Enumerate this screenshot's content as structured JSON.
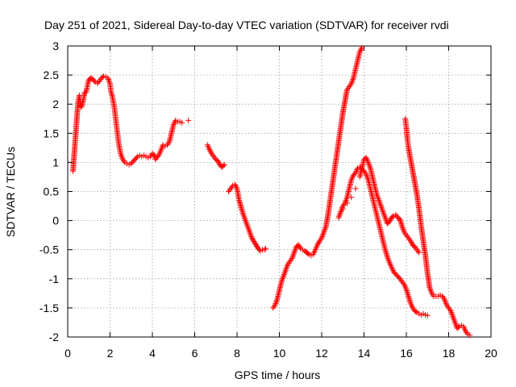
{
  "chart_data": {
    "type": "scatter",
    "title": "Day 251 of 2021, Sidereal Day-to-day VTEC variation (SDTVAR) for receiver rvdi",
    "xlabel": "GPS time / hours",
    "ylabel": "SDTVAR / TECUs",
    "xlim": [
      0,
      20
    ],
    "ylim": [
      -2,
      3
    ],
    "x_ticks": [
      0,
      2,
      4,
      6,
      8,
      10,
      12,
      14,
      16,
      18,
      20
    ],
    "x_tick_labels": [
      "0",
      "2",
      "4",
      "6",
      "8",
      "10",
      "12",
      "14",
      "16",
      "18",
      "20"
    ],
    "y_ticks": [
      -2,
      -1.5,
      -1,
      -0.5,
      0,
      0.5,
      1,
      1.5,
      2,
      2.5,
      3
    ],
    "y_tick_labels": [
      "-2",
      "-1.5",
      "-1",
      "-0.5",
      "0",
      "0.5",
      "1",
      "1.5",
      "2",
      "2.5",
      "3"
    ],
    "grid": true,
    "marker": "plus",
    "color": "#ff0000",
    "series": [
      {
        "points": [
          [
            0.25,
            0.85
          ],
          [
            0.3,
            1.1
          ],
          [
            0.35,
            1.35
          ],
          [
            0.4,
            1.6
          ],
          [
            0.45,
            1.85
          ],
          [
            0.5,
            2.05
          ],
          [
            0.55,
            2.15
          ],
          [
            0.6,
            2.0
          ],
          [
            0.65,
            1.95
          ],
          [
            0.7,
            2.0
          ],
          [
            0.75,
            2.1
          ],
          [
            0.8,
            2.2
          ],
          [
            0.85,
            2.2
          ],
          [
            0.9,
            2.25
          ],
          [
            0.95,
            2.35
          ],
          [
            1.0,
            2.42
          ],
          [
            1.1,
            2.45
          ],
          [
            1.2,
            2.42
          ],
          [
            1.3,
            2.38
          ],
          [
            1.4,
            2.36
          ],
          [
            1.5,
            2.4
          ],
          [
            1.6,
            2.45
          ],
          [
            1.7,
            2.48
          ],
          [
            1.8,
            2.47
          ],
          [
            1.9,
            2.45
          ],
          [
            1.95,
            2.4
          ],
          [
            2.0,
            2.35
          ],
          [
            2.05,
            2.2
          ],
          [
            2.1,
            2.15
          ],
          [
            2.15,
            2.05
          ],
          [
            2.2,
            1.95
          ],
          [
            2.25,
            1.8
          ],
          [
            2.3,
            1.65
          ],
          [
            2.35,
            1.5
          ],
          [
            2.4,
            1.35
          ],
          [
            2.45,
            1.25
          ],
          [
            2.5,
            1.15
          ],
          [
            2.6,
            1.05
          ],
          [
            2.7,
            1.0
          ],
          [
            2.8,
            0.98
          ],
          [
            2.9,
            0.96
          ],
          [
            3.0,
            0.98
          ],
          [
            3.1,
            1.02
          ],
          [
            3.2,
            1.06
          ],
          [
            3.3,
            1.1
          ],
          [
            3.4,
            1.12
          ],
          [
            3.5,
            1.1
          ],
          [
            3.6,
            1.12
          ],
          [
            3.7,
            1.1
          ],
          [
            3.8,
            1.08
          ],
          [
            3.9,
            1.1
          ],
          [
            4.0,
            1.15
          ],
          [
            4.1,
            1.12
          ],
          [
            4.15,
            1.05
          ],
          [
            4.2,
            1.08
          ],
          [
            4.3,
            1.12
          ],
          [
            4.4,
            1.2
          ],
          [
            4.5,
            1.3
          ],
          [
            4.6,
            1.28
          ],
          [
            4.7,
            1.3
          ],
          [
            4.8,
            1.35
          ],
          [
            4.9,
            1.5
          ],
          [
            5.0,
            1.65
          ],
          [
            5.1,
            1.72
          ],
          [
            5.2,
            1.7
          ],
          [
            5.3,
            1.7
          ],
          [
            5.4,
            1.68
          ],
          [
            5.7,
            1.72
          ],
          [
            6.6,
            1.3
          ],
          [
            6.7,
            1.22
          ],
          [
            6.8,
            1.15
          ],
          [
            6.9,
            1.1
          ],
          [
            7.0,
            1.05
          ],
          [
            7.1,
            1.02
          ],
          [
            7.2,
            0.95
          ],
          [
            7.3,
            0.92
          ],
          [
            7.4,
            0.96
          ],
          [
            7.6,
            0.5
          ],
          [
            7.7,
            0.55
          ],
          [
            7.8,
            0.6
          ],
          [
            7.9,
            0.62
          ],
          [
            8.0,
            0.55
          ],
          [
            8.05,
            0.45
          ],
          [
            8.1,
            0.35
          ],
          [
            8.2,
            0.22
          ],
          [
            8.3,
            0.1
          ],
          [
            8.4,
            0.0
          ],
          [
            8.5,
            -0.1
          ],
          [
            8.6,
            -0.2
          ],
          [
            8.7,
            -0.3
          ],
          [
            8.8,
            -0.36
          ],
          [
            8.9,
            -0.42
          ],
          [
            9.0,
            -0.48
          ],
          [
            9.1,
            -0.52
          ],
          [
            9.2,
            -0.5
          ],
          [
            9.3,
            -0.5
          ],
          [
            9.35,
            -0.48
          ],
          [
            9.7,
            -1.5
          ],
          [
            9.8,
            -1.45
          ],
          [
            9.9,
            -1.35
          ],
          [
            10.0,
            -1.2
          ],
          [
            10.1,
            -1.05
          ],
          [
            10.2,
            -0.95
          ],
          [
            10.3,
            -0.85
          ],
          [
            10.4,
            -0.75
          ],
          [
            10.5,
            -0.7
          ],
          [
            10.6,
            -0.65
          ],
          [
            10.7,
            -0.55
          ],
          [
            10.8,
            -0.45
          ],
          [
            10.9,
            -0.42
          ],
          [
            11.0,
            -0.48
          ],
          [
            11.1,
            -0.5
          ],
          [
            11.2,
            -0.52
          ],
          [
            11.3,
            -0.55
          ],
          [
            11.4,
            -0.58
          ],
          [
            11.5,
            -0.6
          ],
          [
            11.6,
            -0.58
          ],
          [
            11.7,
            -0.5
          ],
          [
            11.8,
            -0.42
          ],
          [
            11.9,
            -0.35
          ],
          [
            12.0,
            -0.3
          ],
          [
            12.1,
            -0.2
          ],
          [
            12.2,
            -0.1
          ],
          [
            12.3,
            0.1
          ],
          [
            12.4,
            0.35
          ],
          [
            12.5,
            0.6
          ],
          [
            12.6,
            0.85
          ],
          [
            12.7,
            1.1
          ],
          [
            12.8,
            1.35
          ],
          [
            12.9,
            1.6
          ],
          [
            13.0,
            1.85
          ],
          [
            13.1,
            2.05
          ],
          [
            13.2,
            2.25
          ],
          [
            13.3,
            2.3
          ],
          [
            13.4,
            2.35
          ],
          [
            13.5,
            2.45
          ],
          [
            13.6,
            2.6
          ],
          [
            13.7,
            2.75
          ],
          [
            13.8,
            2.9
          ],
          [
            13.9,
            2.97
          ],
          [
            12.8,
            0.05
          ],
          [
            12.9,
            0.15
          ],
          [
            13.0,
            0.25
          ],
          [
            13.1,
            0.3
          ],
          [
            13.2,
            0.4
          ],
          [
            13.3,
            0.55
          ],
          [
            13.4,
            0.7
          ],
          [
            13.5,
            0.78
          ],
          [
            13.6,
            0.82
          ],
          [
            13.7,
            0.9
          ],
          [
            13.8,
            0.92
          ],
          [
            13.9,
            0.88
          ],
          [
            14.0,
            0.85
          ],
          [
            14.1,
            0.8
          ],
          [
            14.2,
            0.7
          ],
          [
            14.3,
            0.55
          ],
          [
            14.4,
            0.4
          ],
          [
            14.5,
            0.25
          ],
          [
            14.6,
            0.1
          ],
          [
            14.7,
            -0.05
          ],
          [
            14.8,
            -0.2
          ],
          [
            14.9,
            -0.35
          ],
          [
            15.0,
            -0.5
          ],
          [
            15.1,
            -0.62
          ],
          [
            15.2,
            -0.72
          ],
          [
            15.3,
            -0.8
          ],
          [
            15.4,
            -0.88
          ],
          [
            15.5,
            -0.92
          ],
          [
            15.6,
            -0.96
          ],
          [
            15.7,
            -1.0
          ],
          [
            15.8,
            -1.05
          ],
          [
            15.9,
            -1.1
          ],
          [
            16.0,
            -1.18
          ],
          [
            16.1,
            -1.3
          ],
          [
            16.2,
            -1.42
          ],
          [
            16.3,
            -1.5
          ],
          [
            16.4,
            -1.55
          ],
          [
            16.5,
            -1.58
          ],
          [
            16.6,
            -1.6
          ],
          [
            16.7,
            -1.62
          ],
          [
            16.8,
            -1.6
          ],
          [
            16.9,
            -1.62
          ],
          [
            17.0,
            -1.63
          ],
          [
            13.0,
            0.2
          ],
          [
            13.2,
            0.3
          ],
          [
            13.4,
            0.4
          ],
          [
            13.6,
            0.55
          ],
          [
            13.8,
            0.75
          ],
          [
            13.9,
            0.9
          ],
          [
            14.0,
            1.05
          ],
          [
            14.1,
            1.08
          ],
          [
            14.2,
            1.0
          ],
          [
            14.3,
            0.9
          ],
          [
            14.4,
            0.75
          ],
          [
            14.5,
            0.6
          ],
          [
            14.6,
            0.45
          ],
          [
            14.7,
            0.35
          ],
          [
            14.8,
            0.25
          ],
          [
            14.9,
            0.15
          ],
          [
            15.0,
            0.05
          ],
          [
            15.1,
            -0.05
          ],
          [
            15.2,
            -0.02
          ],
          [
            15.3,
            0.05
          ],
          [
            15.4,
            0.08
          ],
          [
            15.5,
            0.1
          ],
          [
            15.6,
            0.05
          ],
          [
            15.7,
            0.02
          ],
          [
            15.8,
            -0.1
          ],
          [
            15.9,
            -0.2
          ],
          [
            16.0,
            -0.25
          ],
          [
            16.1,
            -0.3
          ],
          [
            16.2,
            -0.35
          ],
          [
            16.3,
            -0.42
          ],
          [
            16.4,
            -0.45
          ],
          [
            16.5,
            -0.5
          ],
          [
            16.6,
            -0.55
          ],
          [
            15.95,
            1.75
          ],
          [
            16.0,
            1.6
          ],
          [
            16.05,
            1.4
          ],
          [
            16.1,
            1.25
          ],
          [
            16.2,
            1.05
          ],
          [
            16.3,
            0.85
          ],
          [
            16.4,
            0.65
          ],
          [
            16.5,
            0.45
          ],
          [
            16.6,
            0.2
          ],
          [
            16.7,
            -0.1
          ],
          [
            16.8,
            -0.35
          ],
          [
            16.9,
            -0.6
          ],
          [
            17.0,
            -0.9
          ],
          [
            17.1,
            -1.15
          ],
          [
            17.2,
            -1.25
          ],
          [
            17.3,
            -1.3
          ],
          [
            17.4,
            -1.3
          ],
          [
            17.5,
            -1.3
          ],
          [
            17.6,
            -1.28
          ],
          [
            17.7,
            -1.3
          ],
          [
            17.8,
            -1.35
          ],
          [
            17.9,
            -1.45
          ],
          [
            18.0,
            -1.5
          ],
          [
            18.1,
            -1.55
          ],
          [
            18.2,
            -1.65
          ],
          [
            18.3,
            -1.75
          ],
          [
            18.4,
            -1.85
          ],
          [
            18.5,
            -1.82
          ],
          [
            18.6,
            -1.8
          ],
          [
            18.7,
            -1.82
          ],
          [
            18.8,
            -1.9
          ],
          [
            18.9,
            -1.95
          ],
          [
            19.0,
            -1.97
          ]
        ]
      }
    ]
  }
}
